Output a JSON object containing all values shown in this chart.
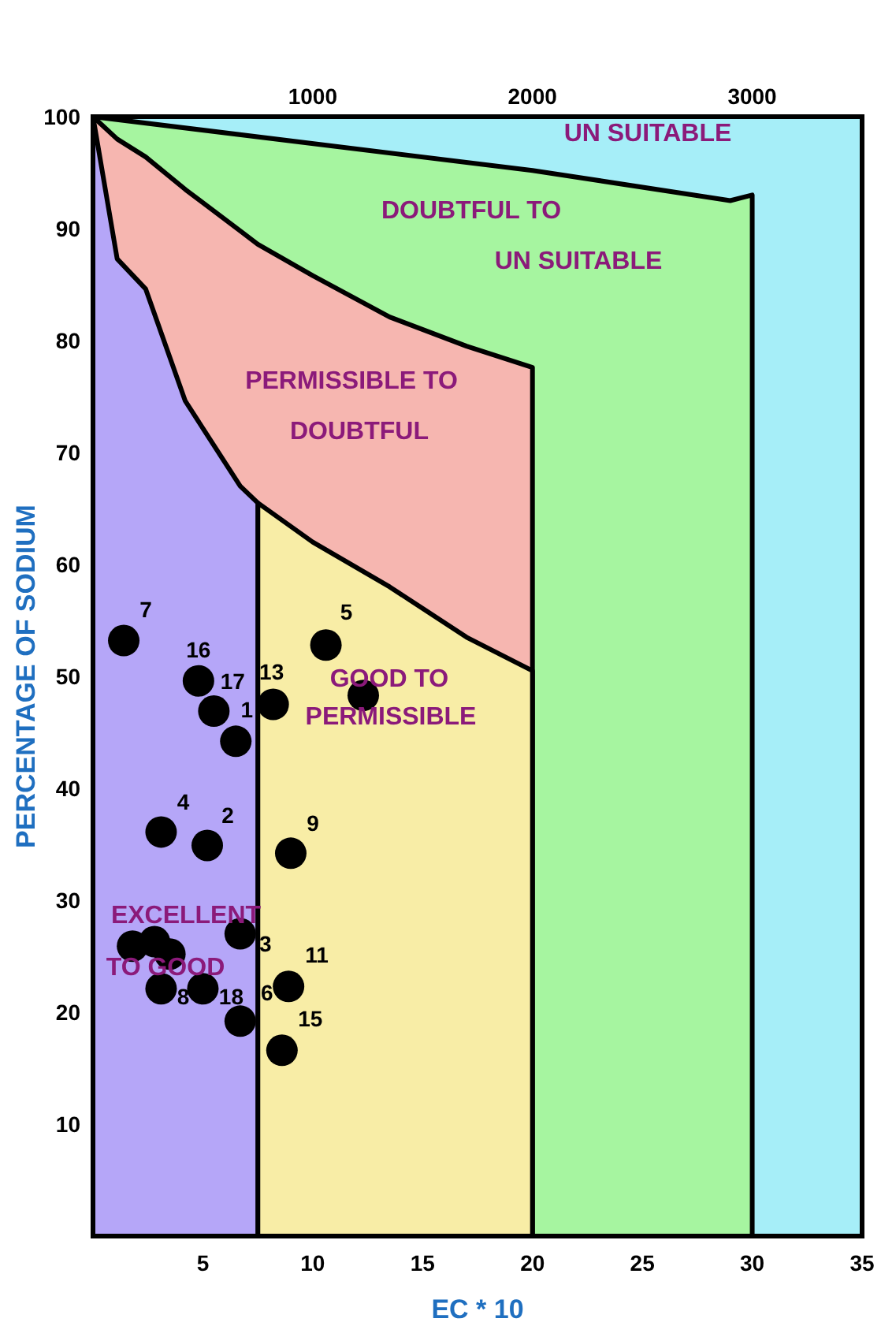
{
  "chart_data": {
    "type": "scatter",
    "xlabel": "EC * 10",
    "ylabel": "PERCENTAGE OF SODIUM",
    "xlim": [
      0,
      35
    ],
    "xticks": [
      5,
      10,
      15,
      20,
      25,
      30,
      35
    ],
    "ylim": [
      0,
      100
    ],
    "yticks": [
      10,
      20,
      30,
      40,
      50,
      60,
      70,
      80,
      90,
      100
    ],
    "x2lim": [
      0,
      3500
    ],
    "x2ticks": [
      1000,
      2000,
      3000
    ],
    "grid": false,
    "series": [
      {
        "type": "area",
        "name": "UN SUITABLE",
        "color": "#a6eef8",
        "x": [
          0,
          35
        ],
        "values": [
          100,
          100
        ]
      },
      {
        "type": "area",
        "name": "DOUBTFUL TO UN SUITABLE",
        "color": "#a6f5a0",
        "x": [
          0,
          20,
          29,
          30
        ],
        "values": [
          100,
          95.2,
          92.5,
          93
        ]
      },
      {
        "type": "area",
        "name": "PERMISSIBLE TO DOUBTFUL",
        "color": "#f6b6b0",
        "x": [
          0,
          1.1,
          2.4,
          4.2,
          6.7,
          7.5,
          10,
          13.5,
          17,
          20
        ],
        "values": [
          100,
          98,
          96.4,
          93.5,
          89.8,
          88.6,
          85.8,
          82.1,
          79.5,
          77.6
        ]
      },
      {
        "type": "area",
        "name": "GOOD TO PERMISSIBLE",
        "color": "#f8eda6",
        "x": [
          7.5,
          10,
          13.5,
          17,
          20
        ],
        "values": [
          65.5,
          62,
          58,
          53.5,
          50.5
        ]
      },
      {
        "type": "area",
        "name": "EXCELLENT TO GOOD",
        "color": "#b5a6f8",
        "x": [
          0,
          1.1,
          2.4,
          4.2,
          6.7,
          7.5
        ],
        "values": [
          100,
          87.3,
          84.6,
          74.6,
          67,
          65.5
        ]
      },
      {
        "color": "#000000",
        "marker": "circle",
        "x": [
          1.4,
          4.8,
          5.5,
          6.5,
          8.2,
          10.6,
          12.3,
          3.1,
          5.2,
          9.0,
          1.8,
          2.8,
          3.5,
          6.7,
          3.1,
          5.0,
          6.7,
          8.9,
          8.6
        ],
        "values": [
          53.2,
          49.6,
          46.9,
          44.2,
          47.5,
          52.8,
          48.3,
          36.1,
          34.9,
          34.2,
          25.9,
          26.3,
          25.2,
          27.0,
          22.1,
          22.1,
          19.2,
          22.3,
          16.6
        ]
      }
    ],
    "annotations": [
      {
        "text": "7",
        "x": 1.4,
        "y": 53.2
      },
      {
        "text": "16",
        "x": 4.8,
        "y": 49.6
      },
      {
        "text": "17",
        "x": 5.5,
        "y": 46.9
      },
      {
        "text": "1",
        "x": 6.5,
        "y": 44.2
      },
      {
        "text": "13",
        "x": 8.2,
        "y": 47.5
      },
      {
        "text": "5",
        "x": 10.6,
        "y": 52.8
      },
      {
        "text": "4",
        "x": 3.1,
        "y": 36.1
      },
      {
        "text": "2",
        "x": 5.2,
        "y": 34.9
      },
      {
        "text": "9",
        "x": 9.0,
        "y": 34.2
      },
      {
        "text": "3",
        "x": 6.7,
        "y": 27.0
      },
      {
        "text": "11",
        "x": 8.9,
        "y": 22.3
      },
      {
        "text": "8",
        "x": 3.1,
        "y": 22.1
      },
      {
        "text": "18",
        "x": 5.0,
        "y": 22.1
      },
      {
        "text": "6",
        "x": 6.7,
        "y": 19.2
      },
      {
        "text": "15",
        "x": 8.6,
        "y": 16.6
      }
    ]
  }
}
